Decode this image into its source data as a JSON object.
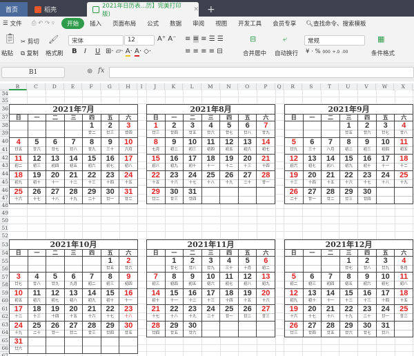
{
  "tabs": {
    "home": "首页",
    "daoke": "稻壳",
    "doc": "2021年日历表...历】完美打印版)",
    "new": "+"
  },
  "menu": {
    "file": "文件",
    "items": [
      "开始",
      "插入",
      "页面布局",
      "公式",
      "数据",
      "审阅",
      "视图",
      "开发工具",
      "会员专享"
    ],
    "search": "查找命令、搜索模板"
  },
  "ribbon": {
    "paste": "粘贴",
    "cut": "剪切",
    "copy": "复制",
    "format_painter": "格式刷",
    "font": "宋体",
    "size": "12",
    "bold": "B",
    "italic": "I",
    "underline": "U",
    "merge": "合并居中",
    "wrap": "自动换行",
    "number_format": "常规",
    "currency": "¥",
    "percent": "%",
    "thousands": "000",
    "inc_dec": "+.0",
    "dec_dec": ".00",
    "cond_format": "条件格式"
  },
  "formula_bar": {
    "name_box": "B1",
    "fx": "fx",
    "value": ""
  },
  "colors": {
    "accent": "#2e9c4a",
    "weekend": "#e02020"
  },
  "columns": [
    "B",
    "C",
    "D",
    "E",
    "F",
    "G",
    "H",
    "I",
    "J",
    "K",
    "L",
    "M",
    "N",
    "O",
    "P",
    "Q",
    "R",
    "S",
    "T",
    "U",
    "V",
    "W",
    "X"
  ],
  "rows": [
    34,
    35,
    36,
    37,
    38,
    39,
    40,
    41,
    42,
    43,
    44,
    45,
    46,
    47,
    48,
    49,
    50,
    51,
    52,
    53,
    54,
    55,
    56,
    57,
    58,
    59,
    60,
    61,
    62,
    63,
    64,
    65,
    66,
    67
  ],
  "weekdays": [
    "日",
    "一",
    "二",
    "三",
    "四",
    "五",
    "六"
  ],
  "calendars": [
    {
      "title": "2021年7月",
      "start": 4,
      "weeks": 5,
      "lunar": [
        "廿二",
        "廿三",
        "廿四",
        "廿五",
        "廿六",
        "廿七",
        "廿八",
        "廿九",
        "三十",
        "六月",
        "初二",
        "初三",
        "初四",
        "初五",
        "初六",
        "初七",
        "初八",
        "初九",
        "初十",
        "十一",
        "十二",
        "十三",
        "十四",
        "十五",
        "十六",
        "十七",
        "十八",
        "十九",
        "二十",
        "廿一",
        "廿二"
      ],
      "red_lunar": []
    },
    {
      "title": "2021年8月",
      "start": 0,
      "weeks": 5,
      "lunar": [
        "廿三",
        "廿四",
        "廿五",
        "廿六",
        "廿七",
        "廿八",
        "廿九",
        "七月",
        "初二",
        "初三",
        "初四",
        "初五",
        "初六",
        "初七",
        "初八",
        "初九",
        "初十",
        "十一",
        "十二",
        "十三",
        "十四",
        "十五",
        "十六",
        "十七",
        "十八",
        "十九",
        "二十",
        "廿一",
        "廿二",
        "廿三",
        "廿四"
      ],
      "red_lunar": []
    },
    {
      "title": "2021年9月",
      "start": 3,
      "weeks": 5,
      "lunar": [
        "廿五",
        "廿六",
        "廿七",
        "廿八",
        "廿九",
        "三十",
        "八月",
        "初二",
        "初三",
        "初四",
        "初五",
        "初六",
        "初七",
        "初八",
        "初九",
        "初十",
        "十一",
        "十二",
        "十三",
        "十四",
        "十五",
        "十六",
        "十七",
        "十八",
        "十九",
        "二十",
        "廿一",
        "廿二",
        "廿三",
        "廿四"
      ],
      "red_lunar": []
    },
    {
      "title": "2021年10月",
      "start": 5,
      "weeks": 6,
      "lunar": [
        "廿五",
        "廿六",
        "廿七",
        "廿八",
        "廿九",
        "九月",
        "初二",
        "初三",
        "初四",
        "初五",
        "初六",
        "初七",
        "初八",
        "初九",
        "初十",
        "十一",
        "十二",
        "十三",
        "十四",
        "十五",
        "十六",
        "十七",
        "十八",
        "十九",
        "二十",
        "廿一",
        "廿二",
        "廿三",
        "廿四",
        "廿五",
        "廿六"
      ],
      "red_lunar": [
        23
      ]
    },
    {
      "title": "2021年11月",
      "start": 1,
      "weeks": 5,
      "lunar": [
        "廿七",
        "廿八",
        "廿九",
        "三十",
        "十月",
        "初二",
        "初三",
        "初四",
        "初五",
        "初六",
        "初七",
        "初八",
        "初九",
        "初十",
        "十一",
        "十二",
        "十三",
        "十四",
        "十五",
        "十六",
        "十七",
        "十八",
        "十九",
        "二十",
        "廿一",
        "廿二",
        "廿三",
        "廿四",
        "廿五",
        "廿六"
      ],
      "red_lunar": []
    },
    {
      "title": "2021年12月",
      "start": 3,
      "weeks": 5,
      "lunar": [
        "廿七",
        "廿八",
        "廿九",
        "冬月",
        "初二",
        "初三",
        "初四",
        "初五",
        "初六",
        "初七",
        "初八",
        "初九",
        "初十",
        "十一",
        "十二",
        "十三",
        "十四",
        "十五",
        "十六",
        "十七",
        "十八",
        "十九",
        "二十",
        "廿一",
        "廿二",
        "廿三",
        "廿四",
        "廿五",
        "廿六",
        "廿七",
        "廿八"
      ],
      "red_lunar": []
    }
  ]
}
